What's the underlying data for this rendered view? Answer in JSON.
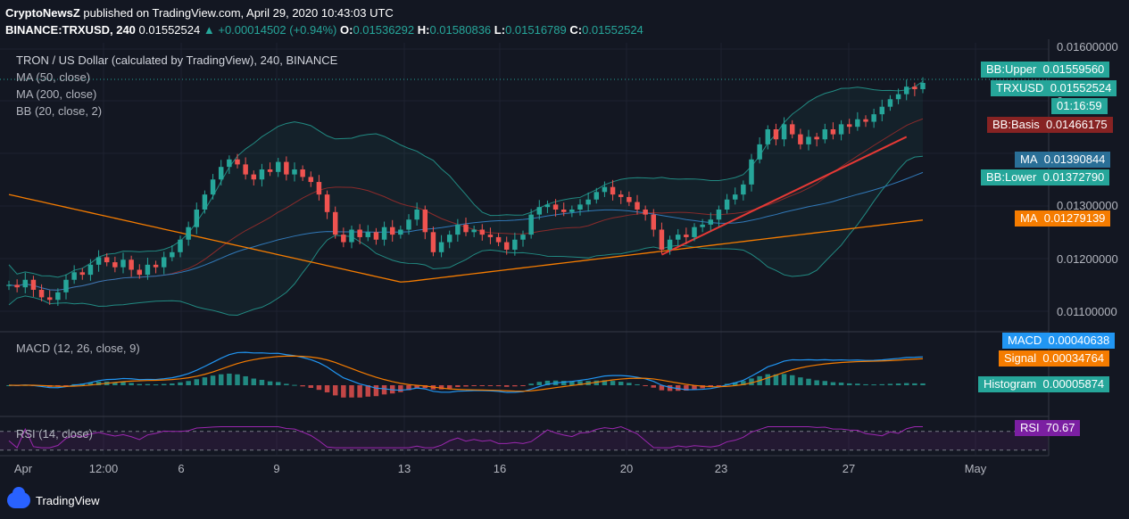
{
  "header": {
    "publisher": "CryptoNewsZ",
    "published_text": "published on TradingView.com, April 29, 2020 10:43:03 UTC",
    "symbol": "BINANCE:TRXUSD, 240",
    "last": "0.01552524",
    "change": "+0.00014502 (+0.94%)",
    "o_label": "O:",
    "o": "0.01536292",
    "h_label": "H:",
    "h": "0.01580836",
    "l_label": "L:",
    "l": "0.01516789",
    "c_label": "C:",
    "c": "0.01552524"
  },
  "legends": {
    "main": "TRON / US Dollar (calculated by TradingView), 240, BINANCE",
    "ma50": "MA (50, close)",
    "ma200": "MA (200, close)",
    "bb": "BB (20, close, 2)",
    "macd": "MACD (12, 26, close, 9)",
    "rsi": "RSI (14, close)"
  },
  "price_axis": {
    "ticks": [
      "0.01600000",
      "0.01300000",
      "0.01200000",
      "0.01100000"
    ],
    "partial_tick": "0."
  },
  "tags": {
    "bb_upper": {
      "label": "BB:Upper",
      "value": "0.01559560",
      "color": "#26a69a"
    },
    "trxusd": {
      "label": "TRXUSD",
      "value": "0.01552524",
      "color": "#26a69a"
    },
    "countdown": {
      "value": "01:16:59",
      "color": "#26a69a"
    },
    "bb_basis": {
      "label": "BB:Basis",
      "value": "0.01466175",
      "color": "#872323"
    },
    "ma50": {
      "label": "MA",
      "value": "0.01390844",
      "color": "#2a6f97"
    },
    "bb_lower": {
      "label": "BB:Lower",
      "value": "0.01372790",
      "color": "#26a69a"
    },
    "ma200": {
      "label": "MA",
      "value": "0.01279139",
      "color": "#f57c00"
    },
    "macd": {
      "label": "MACD",
      "value": "0.00040638",
      "color": "#2196f3"
    },
    "signal": {
      "label": "Signal",
      "value": "0.00034764",
      "color": "#f57c00"
    },
    "histogram": {
      "label": "Histogram",
      "value": "0.00005874",
      "color": "#26a69a"
    },
    "rsi": {
      "label": "RSI",
      "value": "70.67",
      "color": "#7b1fa2"
    }
  },
  "x_axis": {
    "ticks": [
      "Apr",
      "12:00",
      "6",
      "9",
      "13",
      "16",
      "20",
      "23",
      "27",
      "May"
    ]
  },
  "branding": {
    "name": "TradingView"
  },
  "colors": {
    "background": "#131722",
    "up": "#26a69a",
    "down": "#ef5350",
    "ma50": "#3179b9",
    "ma200": "#f57c00",
    "bb": "#26a69a",
    "trendline": "#e53935",
    "macd": "#2196f3",
    "signal": "#f57c00",
    "rsi": "#9c27b0"
  },
  "chart_data": {
    "type": "candlestick",
    "title": "TRON / US Dollar (calculated by TradingView), 240, BINANCE",
    "y_range": [
      0.0106,
      0.0162
    ],
    "x_period": "April 1 – April 29, 2020 (4h candles)",
    "closes": [
      0.0115,
      0.01145,
      0.0116,
      0.0114,
      0.01125,
      0.0112,
      0.01135,
      0.0116,
      0.01175,
      0.0117,
      0.0119,
      0.01205,
      0.01195,
      0.01185,
      0.012,
      0.0118,
      0.0117,
      0.0119,
      0.01185,
      0.01205,
      0.01215,
      0.0124,
      0.01265,
      0.013,
      0.0133,
      0.0136,
      0.01385,
      0.014,
      0.0139,
      0.0137,
      0.0136,
      0.0138,
      0.01375,
      0.01395,
      0.0137,
      0.0138,
      0.01365,
      0.01355,
      0.0133,
      0.01295,
      0.0125,
      0.01235,
      0.0126,
      0.01245,
      0.01255,
      0.0124,
      0.01265,
      0.0125,
      0.0126,
      0.0128,
      0.013,
      0.01255,
      0.01215,
      0.01235,
      0.0125,
      0.0127,
      0.01255,
      0.0126,
      0.0125,
      0.01245,
      0.01235,
      0.0122,
      0.0124,
      0.0125,
      0.0129,
      0.01305,
      0.0131,
      0.013,
      0.01295,
      0.013,
      0.0131,
      0.0132,
      0.01335,
      0.01345,
      0.0133,
      0.01325,
      0.01315,
      0.013,
      0.0129,
      0.0126,
      0.0122,
      0.0124,
      0.0125,
      0.01245,
      0.01265,
      0.0127,
      0.0128,
      0.013,
      0.0132,
      0.0133,
      0.0135,
      0.014,
      0.0143,
      0.0146,
      0.0144,
      0.0147,
      0.0145,
      0.0143,
      0.01445,
      0.0144,
      0.0146,
      0.0145,
      0.0147,
      0.01465,
      0.0148,
      0.01475,
      0.0149,
      0.01505,
      0.0152,
      0.0153,
      0.01545,
      0.0154,
      0.01552524
    ],
    "ma50_last": 0.01390844,
    "ma200_last": 0.01279139,
    "bb": {
      "upper_last": 0.0155956,
      "basis_last": 0.01466175,
      "lower_last": 0.0137279
    },
    "macd": {
      "macd_last": 0.00040638,
      "signal_last": 0.00034764,
      "histogram_last": 5.874e-05
    },
    "rsi": {
      "value": 70.67,
      "levels": [
        70,
        30
      ]
    },
    "trendline": {
      "from_date": "Apr 21",
      "to_date": "Apr 28",
      "from_price": 0.0121,
      "to_price": 0.01445
    },
    "x_ticks": [
      "Apr",
      "12:00",
      "6",
      "9",
      "13",
      "16",
      "20",
      "23",
      "27",
      "May"
    ]
  }
}
